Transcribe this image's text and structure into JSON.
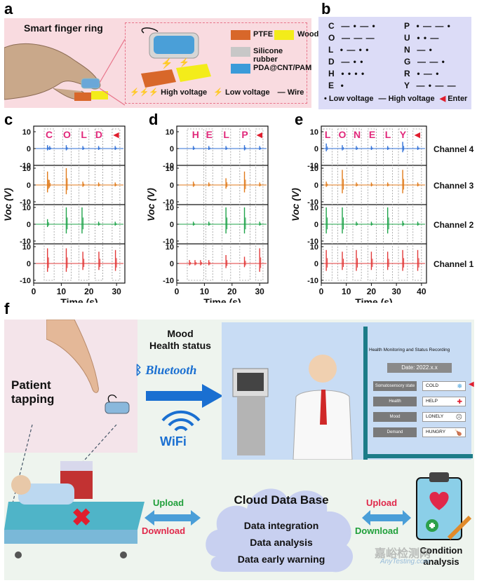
{
  "panels": {
    "a": "a",
    "b": "b",
    "c": "c",
    "d": "d",
    "e": "e",
    "f": "f"
  },
  "panel_a": {
    "title": "Smart finger ring",
    "legend": [
      {
        "label": "PTFE",
        "color": "#d8672a"
      },
      {
        "label": "Wood",
        "color": "#f3ec1a"
      },
      {
        "label": "Silicone rubber",
        "color": "#c7c7c7"
      },
      {
        "label": "PDA@CNT/PAM",
        "color": "#3b9bd9"
      }
    ],
    "high_voltage": "High voltage",
    "low_voltage": "Low voltage",
    "wire": "Wire"
  },
  "panel_b": {
    "rows_left": [
      "C",
      "O",
      "L",
      "D",
      "H",
      "E"
    ],
    "rows_right": [
      "P",
      "U",
      "N",
      "G",
      "R",
      "Y"
    ],
    "codes_left": [
      "— • — •",
      "— — —",
      "• — • •",
      "— • •",
      "• • • •",
      "•"
    ],
    "codes_right": [
      "• — — •",
      "• • —",
      "— •",
      "— — •",
      "• — •",
      "— • — —"
    ],
    "legend_low": "Low voltage",
    "legend_high": "High voltage",
    "legend_enter": "Enter"
  },
  "chart_data": [
    {
      "type": "line",
      "title": "",
      "letters": [
        "C",
        "O",
        "L",
        "D",
        "◄"
      ],
      "xlabel": "Time (s)",
      "ylabel": "Voc (V)",
      "xlim": [
        0,
        33
      ],
      "xticks": [
        0,
        10,
        20,
        30
      ],
      "ylim": [
        -10,
        10
      ],
      "yticks": [
        -10,
        0,
        10
      ],
      "series": [
        {
          "name": "Channel 4",
          "color": "#2f6fd6",
          "spikes": [
            [
              5,
              2
            ],
            [
              5.8,
              1.5
            ],
            [
              11.8,
              2
            ],
            [
              17.8,
              1.5
            ],
            [
              23.5,
              1.5
            ],
            [
              29.5,
              1.5
            ]
          ]
        },
        {
          "name": "Channel 3",
          "color": "#e07a1a",
          "spikes": [
            [
              5,
              8
            ],
            [
              5.6,
              3
            ],
            [
              11.8,
              10
            ],
            [
              17.8,
              2
            ],
            [
              23.5,
              1.5
            ],
            [
              29.5,
              1.5
            ]
          ]
        },
        {
          "name": "Channel 2",
          "color": "#1fa34a",
          "spikes": [
            [
              5,
              3
            ],
            [
              11.8,
              10
            ],
            [
              17.5,
              10
            ],
            [
              23.5,
              1.5
            ],
            [
              29.5,
              1.5
            ]
          ]
        },
        {
          "name": "Channel 1",
          "color": "#e23a3a",
          "spikes": [
            [
              5,
              9
            ],
            [
              11.8,
              9
            ],
            [
              17.8,
              7
            ],
            [
              23.6,
              7
            ],
            [
              29.6,
              8
            ]
          ]
        }
      ],
      "boxes": [
        [
          3.8,
          7.4
        ],
        [
          10.5,
          13.6
        ],
        [
          16.4,
          20
        ],
        [
          22.2,
          25
        ],
        [
          28.4,
          31.2
        ]
      ]
    },
    {
      "type": "line",
      "title": "",
      "letters": [
        "H",
        "E",
        "L",
        "P",
        "◄"
      ],
      "xlabel": "Time (s)",
      "ylabel": "Voc (V)",
      "xlim": [
        0,
        33
      ],
      "xticks": [
        0,
        10,
        20,
        30
      ],
      "ylim": [
        -10,
        10
      ],
      "yticks": [
        -10,
        0,
        10
      ],
      "series": [
        {
          "name": "Channel 4",
          "color": "#2f6fd6",
          "spikes": [
            [
              6,
              1.5
            ],
            [
              11.6,
              1.5
            ],
            [
              17.8,
              1.5
            ],
            [
              24.5,
              2
            ],
            [
              30,
              1.5
            ]
          ]
        },
        {
          "name": "Channel 3",
          "color": "#e07a1a",
          "spikes": [
            [
              6,
              2
            ],
            [
              11.6,
              1.5
            ],
            [
              17.8,
              4
            ],
            [
              24.5,
              8
            ],
            [
              30,
              1.5
            ]
          ]
        },
        {
          "name": "Channel 2",
          "color": "#1fa34a",
          "spikes": [
            [
              6,
              1.5
            ],
            [
              11.6,
              1.5
            ],
            [
              17.8,
              10
            ],
            [
              24.5,
              10
            ],
            [
              30,
              1.5
            ]
          ]
        },
        {
          "name": "Channel 1",
          "color": "#e23a3a",
          "spikes": [
            [
              4.6,
              2
            ],
            [
              6.6,
              2
            ],
            [
              8.6,
              2
            ],
            [
              11.6,
              2
            ],
            [
              17.8,
              5
            ],
            [
              24.5,
              4
            ],
            [
              30,
              9
            ]
          ]
        }
      ],
      "boxes": [
        [
          3.8,
          9.8
        ],
        [
          10.5,
          13
        ],
        [
          16.4,
          19.5
        ],
        [
          22.8,
          26.5
        ],
        [
          28.6,
          31.2
        ]
      ]
    },
    {
      "type": "line",
      "title": "",
      "letters": [
        "L",
        "O",
        "N",
        "E",
        "L",
        "Y",
        "◄"
      ],
      "xlabel": "Time (s)",
      "ylabel": "Voc (V)",
      "xlim": [
        0,
        42
      ],
      "xticks": [
        0,
        10,
        20,
        30,
        40
      ],
      "ylim": [
        -10,
        10
      ],
      "yticks": [
        -10,
        0,
        10
      ],
      "series": [
        {
          "name": "Channel 4",
          "color": "#2f6fd6",
          "spikes": [
            [
              2,
              3
            ],
            [
              8.4,
              2
            ],
            [
              14,
              1.5
            ],
            [
              20,
              1.5
            ],
            [
              26.5,
              1.5
            ],
            [
              32.5,
              4
            ],
            [
              38.5,
              1.5
            ]
          ]
        },
        {
          "name": "Channel 3",
          "color": "#e07a1a",
          "spikes": [
            [
              2,
              2
            ],
            [
              8.4,
              9
            ],
            [
              14,
              1.5
            ],
            [
              20,
              1.5
            ],
            [
              26.5,
              1.5
            ],
            [
              32.5,
              9
            ],
            [
              38.5,
              1.5
            ]
          ]
        },
        {
          "name": "Channel 2",
          "color": "#1fa34a",
          "spikes": [
            [
              2,
              10
            ],
            [
              8.4,
              10
            ],
            [
              14,
              1.5
            ],
            [
              20,
              1.5
            ],
            [
              26.5,
              10
            ],
            [
              32.5,
              2
            ],
            [
              38.5,
              1.5
            ]
          ]
        },
        {
          "name": "Channel 1",
          "color": "#e23a3a",
          "spikes": [
            [
              2,
              8
            ],
            [
              8.4,
              7
            ],
            [
              14,
              8
            ],
            [
              20,
              7
            ],
            [
              26.5,
              7
            ],
            [
              32.5,
              8
            ],
            [
              38.5,
              8
            ]
          ]
        }
      ],
      "boxes": [
        [
          0.8,
          4.3
        ],
        [
          6.6,
          10.2
        ],
        [
          12.6,
          16
        ],
        [
          18.6,
          22
        ],
        [
          24.8,
          28.4
        ],
        [
          30.8,
          34.4
        ],
        [
          36.6,
          40
        ]
      ]
    }
  ],
  "channel_labels": [
    "Channel 4",
    "Channel 3",
    "Channel 2",
    "Channel 1"
  ],
  "panel_f": {
    "patient_tapping": "Patient\ntapping",
    "mood_health": "Mood\nHealth status",
    "bluetooth": "Bluetooth",
    "wifi": "WiFi",
    "monitor_title": "Health Monitoring and Status Recording",
    "date": "Date: 2022.x.x",
    "rows": [
      {
        "label": "Somatosensory state",
        "value": "COLD",
        "icon": "snowflake-icon"
      },
      {
        "label": "Health",
        "value": "HELP",
        "icon": "red-cross-icon"
      },
      {
        "label": "Mood",
        "value": "LONELY",
        "icon": "sad-face-icon"
      },
      {
        "label": "Demand",
        "value": "HUNGRY",
        "icon": "drumstick-icon"
      }
    ],
    "upload": "Upload",
    "download": "Download",
    "cloud_title": "Cloud Data Base",
    "cloud_items": [
      "Data integration",
      "Data analysis",
      "Data early warning"
    ],
    "condition": "Condition\nanalysis",
    "watermark_cn": "嘉峪检测网",
    "watermark_en": "AnyTesting.com"
  }
}
